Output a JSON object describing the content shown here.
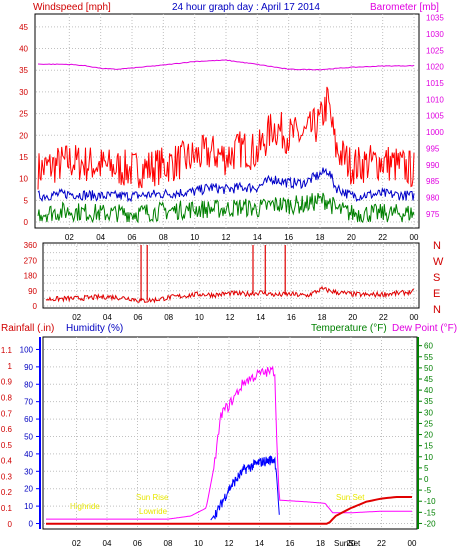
{
  "header": {
    "windspeed_label": "Windspeed [mph]",
    "title": "24 hour graph day : April 17 2014",
    "barometer_label": "Barometer [mb]"
  },
  "lower_header": {
    "rainfall_label": "Rainfall (.in)",
    "humidity_label": "Humidity (%)",
    "temperature_label": "Temperature (°F)",
    "dewpoint_label": "Dew Point (°F)"
  },
  "compass": [
    "N",
    "W",
    "S",
    "E",
    "N"
  ],
  "annotations": {
    "highride": "Highride",
    "sunrise": "Sun Rise",
    "lowride": "Lowride",
    "sunset": "Sun Set",
    "sunset_axis": "SunSet"
  },
  "colors": {
    "wind_gust": "#ff0000",
    "wind_avg": "#0000c8",
    "wind_low": "#008000",
    "barometer": "#e000e0",
    "direction": "#e00000",
    "humidity": "#0000ff",
    "temperature": "#ff00ff",
    "rain": "#e00000",
    "annotation": "#e8e800",
    "grid": "#c0c0c0"
  },
  "chart_data": [
    {
      "type": "line",
      "title": "24 hour graph day : April 17 2014",
      "x_ticks": [
        "02",
        "04",
        "06",
        "08",
        "10",
        "12",
        "14",
        "16",
        "18",
        "20",
        "22",
        "00"
      ],
      "left_axis": {
        "label": "Windspeed [mph]",
        "ticks": [
          0,
          5,
          10,
          15,
          20,
          25,
          30,
          35,
          40,
          45
        ],
        "range": [
          0,
          47.5
        ]
      },
      "right_axis": {
        "label": "Barometer [mb]",
        "ticks": [
          975,
          980,
          985,
          990,
          995,
          1000,
          1005,
          1010,
          1015,
          1020,
          1025,
          1030,
          1035
        ],
        "range": [
          972.5,
          1035.5
        ]
      },
      "series": [
        {
          "name": "",
          "axis": "left",
          "hours": [
            0,
            2,
            4,
            6,
            8,
            10,
            11,
            12,
            13,
            14,
            15,
            16,
            17,
            18,
            18.5,
            19,
            20,
            22,
            24
          ],
          "values": [
            12,
            14,
            13,
            12,
            13,
            15,
            16,
            15,
            17,
            16,
            22,
            20,
            20,
            23,
            28,
            17,
            13,
            14,
            12
          ]
        },
        {
          "name": "",
          "axis": "left",
          "hours": [
            0,
            2,
            4,
            6,
            8,
            10,
            11,
            12,
            13,
            14,
            15,
            16,
            17,
            18,
            18.5,
            19,
            20,
            22,
            24
          ],
          "values": [
            6,
            6.5,
            6,
            6,
            6.5,
            7,
            8,
            7.5,
            8,
            8,
            10,
            9,
            9,
            11,
            12,
            8,
            6,
            6.5,
            6
          ]
        },
        {
          "name": "",
          "axis": "left",
          "hours": [
            0,
            2,
            4,
            6,
            8,
            10,
            11,
            12,
            13,
            14,
            15,
            16,
            17,
            18,
            18.5,
            19,
            20,
            22,
            24
          ],
          "values": [
            2,
            2.5,
            2,
            2,
            2.5,
            3,
            3,
            3,
            3.5,
            3,
            4,
            4,
            4,
            5,
            5,
            3,
            2,
            2,
            2
          ]
        },
        {
          "name": "",
          "axis": "right",
          "hours": [
            0,
            2,
            3,
            4,
            5,
            6,
            8,
            10,
            12,
            14,
            16,
            18,
            20,
            22,
            24
          ],
          "values": [
            1020.8,
            1020.7,
            1020.3,
            1019.5,
            1019.2,
            1019.6,
            1020.5,
            1021.6,
            1022.0,
            1020.7,
            1019.2,
            1019.1,
            1019.8,
            1020.2,
            1020.3
          ]
        }
      ]
    },
    {
      "type": "scatter",
      "x_ticks": [
        "02",
        "04",
        "06",
        "08",
        "10",
        "12",
        "14",
        "16",
        "18",
        "20",
        "22",
        "00"
      ],
      "y_axis": {
        "ticks": [
          0,
          45,
          90,
          135,
          180,
          225,
          270,
          315,
          360
        ],
        "labels": [
          "0",
          "",
          "90",
          "",
          "180",
          "",
          "270",
          "",
          "360"
        ],
        "range": [
          0,
          360
        ]
      },
      "series": [
        {
          "name": "",
          "hours": [
            0,
            2,
            4,
            5.5,
            6.2,
            7,
            8,
            9,
            10,
            11,
            12,
            13,
            14,
            15,
            16,
            17,
            18,
            19,
            20,
            21,
            22,
            23,
            24
          ],
          "values": [
            40,
            45,
            55,
            45,
            30,
            35,
            50,
            60,
            70,
            65,
            75,
            70,
            80,
            65,
            70,
            60,
            100,
            80,
            70,
            65,
            70,
            75,
            85
          ]
        }
      ],
      "spikes": [
        {
          "hour": 6.2,
          "value": 360
        },
        {
          "hour": 6.6,
          "value": 360
        },
        {
          "hour": 13.5,
          "value": 360
        },
        {
          "hour": 14.3,
          "value": 360
        },
        {
          "hour": 15.6,
          "value": 360
        }
      ]
    },
    {
      "type": "line",
      "x_ticks": [
        "02",
        "04",
        "06",
        "08",
        "10",
        "12",
        "14",
        "16",
        "18",
        "20",
        "22",
        "00"
      ],
      "left_axis": {
        "label": "Rainfall (.in)",
        "ticks": [
          0,
          0.1,
          0.2,
          0.3,
          0.4,
          0.5,
          0.6,
          0.7,
          0.8,
          0.9,
          1,
          1.1
        ],
        "range": [
          -0.02,
          1.17
        ]
      },
      "left_axis2": {
        "label": "Humidity (%)",
        "ticks": [
          0,
          10,
          20,
          30,
          40,
          50,
          60,
          70,
          80,
          90,
          100
        ],
        "range": [
          -2,
          106
        ]
      },
      "right_axis": {
        "label": "Temperature (°F)",
        "ticks": [
          -20,
          -15,
          -10,
          -5,
          0,
          5,
          10,
          15,
          20,
          25,
          30,
          35,
          40,
          45,
          50,
          55,
          60
        ],
        "range": [
          -21.6,
          63.0
        ]
      },
      "series": [
        {
          "name": "",
          "axis": "left",
          "hours": [
            0,
            2,
            4,
            6,
            8,
            9.5,
            10.5,
            11,
            11.5,
            12,
            13,
            14,
            15,
            15.1,
            15.3,
            17,
            18.3,
            18.8,
            20,
            22,
            24
          ],
          "values": [
            0.03,
            0.03,
            0.03,
            0.03,
            0.03,
            0.05,
            0.1,
            0.35,
            0.7,
            0.75,
            0.9,
            0.95,
            0.97,
            0.6,
            0.15,
            0.14,
            0.13,
            0.07,
            0.07,
            0.08,
            0.08
          ]
        },
        {
          "name": "",
          "axis": "left2",
          "hours": [
            10.8,
            11.3,
            12,
            13,
            14,
            15,
            15.1,
            15.3
          ],
          "values": [
            2,
            8,
            20,
            31,
            35,
            37,
            30,
            5
          ]
        },
        {
          "name": "",
          "axis": "left",
          "hours": [
            0,
            15.5,
            17,
            18,
            18.5,
            19,
            20,
            21,
            22,
            23,
            24
          ],
          "values": [
            0.0,
            0.0,
            0.0,
            0.0,
            0.0,
            0.05,
            0.1,
            0.14,
            0.16,
            0.17,
            0.17
          ]
        }
      ]
    }
  ]
}
